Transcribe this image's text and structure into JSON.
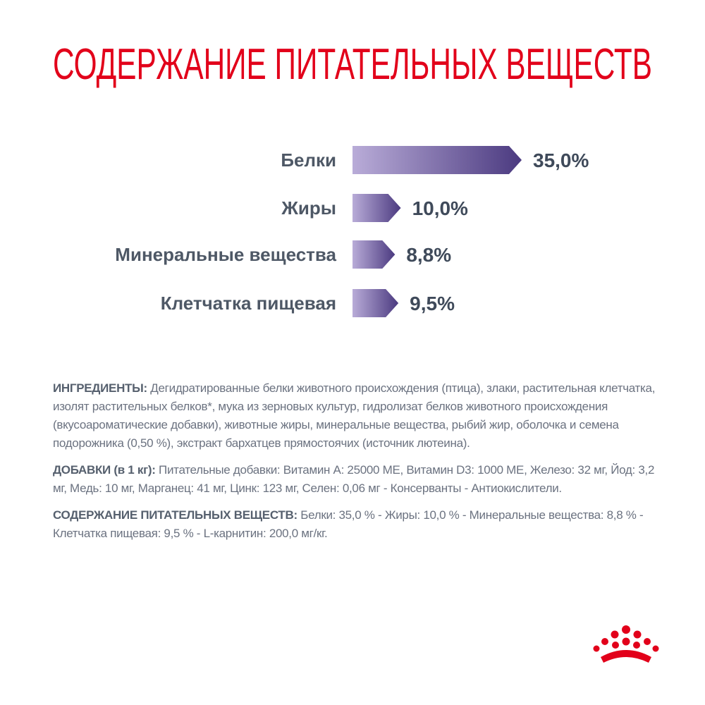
{
  "chart_data": {
    "type": "bar",
    "orientation": "horizontal",
    "title": "СОДЕРЖАНИЕ ПИТАТЕЛЬНЫХ ВЕЩЕСТВ",
    "categories": [
      "Белки",
      "Жиры",
      "Минеральные вещества",
      "Клетчатка пищевая"
    ],
    "values": [
      35.0,
      10.0,
      8.8,
      9.5
    ],
    "value_labels": [
      "35,0%",
      "10,0%",
      "8,8%",
      "9,5%"
    ],
    "color": [
      "#b9acd8",
      "#4b3a80"
    ]
  },
  "text_blocks": [
    {
      "label": "ИНГРЕДИЕНТЫ:",
      "text": "Дегидратированные белки животного происхождения (птица), злаки, растительная клетчатка, изолят растительных белков*, мука из зерновых культур, гидролизат белков животного происхождения (вкусоароматические добавки), животные жиры, минеральные вещества, рыбий жир, оболочка и семена подорожника (0,50 %), экстракт бархатцев прямостоячих (источник лютеина)."
    },
    {
      "label": "ДОБАВКИ (в 1 кг):",
      "text": "Питательные добавки: Витамин A: 25000 МЕ, Витамин D3: 1000 МЕ, Железо: 32 мг, Йод: 3,2 мг, Медь: 10 мг, Марганец: 41 мг, Цинк: 123 мг, Селен: 0,06 мг - Консерванты - Антиокислители."
    },
    {
      "label": "СОДЕРЖАНИЕ ПИТАТЕЛЬНЫХ ВЕЩЕСТВ:",
      "text": "Белки: 35,0 % - Жиры: 10,0 % - Минеральные вещества: 8,8 % - Клетчатка пищевая: 9,5 % - L-карнитин: 200,0 мг/кг."
    }
  ]
}
